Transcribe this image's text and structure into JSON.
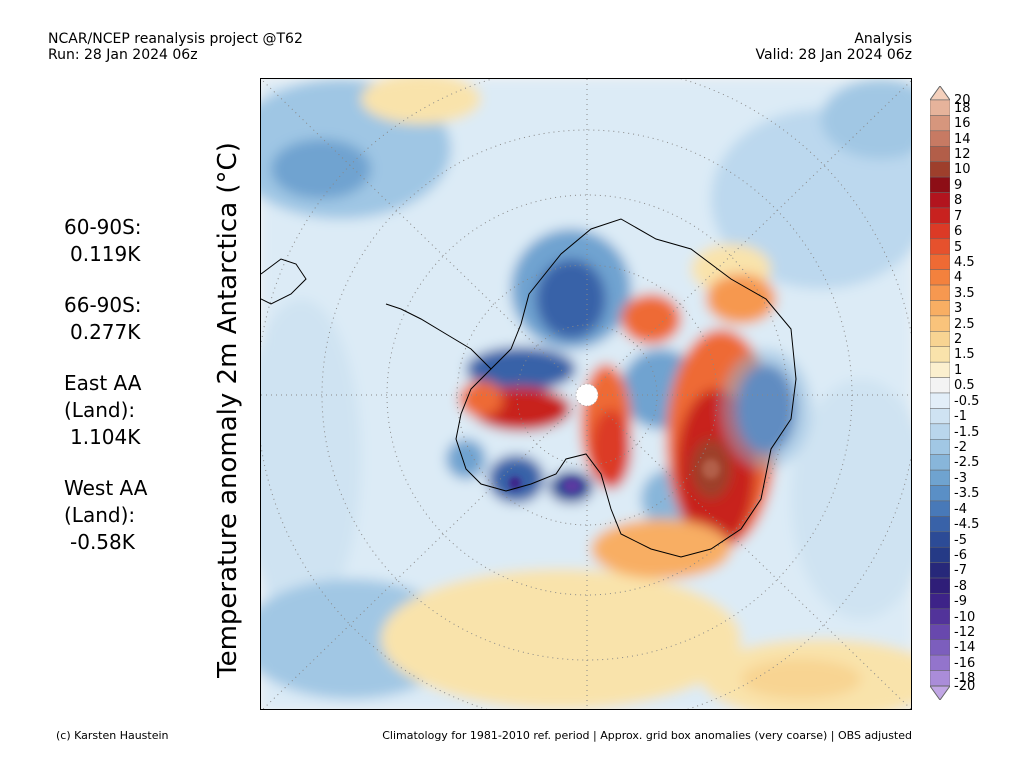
{
  "header": {
    "line1_left": "NCAR/NCEP reanalysis project @T62",
    "line2_left": "Run: 28 Jan 2024 06z",
    "line1_right": "Analysis",
    "line2_right": "Valid: 28 Jan 2024 06z"
  },
  "stats": [
    {
      "label": "60-90S:",
      "value": "0.119K"
    },
    {
      "label": "66-90S:",
      "value": "0.277K"
    },
    {
      "label": "East AA\n(Land):",
      "value": "1.104K"
    },
    {
      "label": "West AA\n(Land):",
      "value": "-0.58K"
    }
  ],
  "map_title": "Temperature anomaly 2m Antarctica (°C)",
  "colorbar": {
    "levels": [
      "20",
      "18",
      "16",
      "14",
      "12",
      "10",
      "9",
      "8",
      "7",
      "6",
      "5",
      "4.5",
      "4",
      "3.5",
      "3",
      "2.5",
      "2",
      "1.5",
      "1",
      "0.5",
      "-0.5",
      "-1",
      "-1.5",
      "-2",
      "-2.5",
      "-3",
      "-3.5",
      "-4",
      "-4.5",
      "-5",
      "-6",
      "-7",
      "-8",
      "-9",
      "-10",
      "-12",
      "-14",
      "-16",
      "-18",
      "-20"
    ],
    "colors": [
      "#f4d0bc",
      "#e6b39b",
      "#d6967d",
      "#c77a63",
      "#b25e49",
      "#9e3f2c",
      "#8d0e16",
      "#b2141e",
      "#c8221f",
      "#dc3a26",
      "#e6512d",
      "#ee6a34",
      "#f3813d",
      "#f69850",
      "#f8ae63",
      "#f9c37b",
      "#f8d492",
      "#f9e3ab",
      "#fbefce",
      "#f3f3f3",
      "#e2eef8",
      "#cfe3f2",
      "#b9d6ec",
      "#a1c7e4",
      "#88b6da",
      "#6fa3d0",
      "#5a8fc6",
      "#4879b8",
      "#3962a8",
      "#2c4b96",
      "#253a86",
      "#27287a",
      "#2f1e78",
      "#3d2388",
      "#52339a",
      "#6848ad",
      "#7c5ebd",
      "#9374cc",
      "#aa8cd9",
      "#c1a6e5"
    ]
  },
  "footer": {
    "left": "(c) Karsten Haustein",
    "right": "Climatology for 1981-2010 ref. period | Approx. grid box anomalies (very coarse) | OBS adjusted"
  }
}
